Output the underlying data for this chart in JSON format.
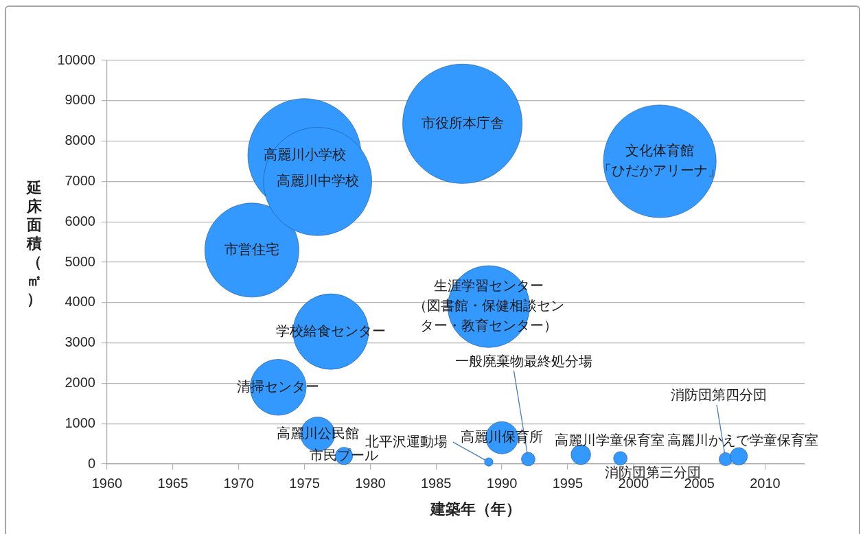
{
  "chart_data": {
    "type": "bubble",
    "xlabel": "建築年（年）",
    "ylabel": "延床面積（㎡）",
    "x": [
      1971,
      1973,
      1975,
      1976,
      1976,
      1977,
      1978,
      1987,
      1989,
      1989,
      1990,
      1992,
      1996,
      1999,
      2002,
      2007,
      2008
    ],
    "series": [
      {
        "color": "#3399ff",
        "values": [
          5300,
          1900,
          7650,
          7000,
          740,
          3280,
          200,
          8430,
          3900,
          50,
          650,
          120,
          230,
          140,
          7500,
          120,
          190
        ],
        "sizes": [
          0.62,
          0.22,
          0.9,
          0.82,
          0.082,
          0.4,
          0.021,
          1,
          0.47,
          0.005,
          0.073,
          0.013,
          0.027,
          0.013,
          0.89,
          0.012,
          0.021
        ]
      }
    ],
    "xlim": [
      1960,
      2013
    ],
    "xticks": [
      1960,
      1965,
      1970,
      1975,
      1980,
      1985,
      1990,
      1995,
      2000,
      2005,
      2010
    ],
    "ylim": [
      0,
      10000
    ],
    "yticks": [
      0,
      1000,
      2000,
      3000,
      4000,
      5000,
      6000,
      7000,
      8000,
      9000,
      10000
    ],
    "grid": "y",
    "annotations": [
      {
        "text": "市営住宅",
        "x": 1971,
        "y": 5300
      },
      {
        "text": "清掃センター",
        "x": 1973,
        "y": 1900
      },
      {
        "text": "高麗川小学校",
        "x": 1975,
        "y": 7650
      },
      {
        "text": "高麗川中学校",
        "x": 1976,
        "y": 7000
      },
      {
        "text": "高麗川公民館",
        "x": 1976,
        "y": 740
      },
      {
        "text": "学校給食センター",
        "x": 1977,
        "y": 3280
      },
      {
        "text": "市民プール",
        "x": 1978,
        "y": 200
      },
      {
        "text": "市役所本庁舎",
        "x": 1987,
        "y": 8430
      },
      {
        "text": "生涯学習センター（図書館・保健相談センター・教育センター）",
        "x": 1989,
        "y": 3900
      },
      {
        "text": "北平沢運動場",
        "x": 1989,
        "y": 50
      },
      {
        "text": "高麗川保育所",
        "x": 1990,
        "y": 650
      },
      {
        "text": "一般廃棄物最終処分場",
        "x": 1992,
        "y": 120
      },
      {
        "text": "高麗川学童保育室",
        "x": 1996,
        "y": 230
      },
      {
        "text": "消防団第三分団",
        "x": 1999,
        "y": 140
      },
      {
        "text": "文化体育館「ひだかアリーナ」",
        "x": 2002,
        "y": 7500
      },
      {
        "text": "消防団第四分団",
        "x": 2007,
        "y": 120
      },
      {
        "text": "高麗川かえで学童保育室",
        "x": 2008,
        "y": 190
      }
    ]
  }
}
